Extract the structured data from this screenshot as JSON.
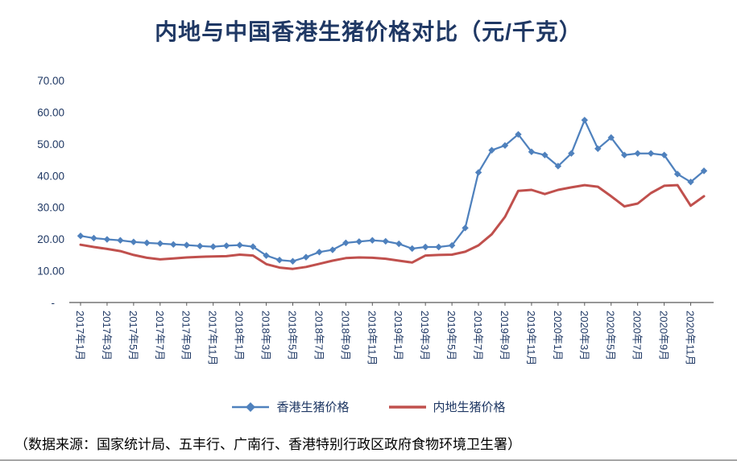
{
  "page": {
    "source_note": "（数据来源：国家统计局、五丰行、广南行、香港特别行政区政府食物环境卫生署）"
  },
  "chart_data": {
    "type": "line",
    "title": "内地与中国香港生猪价格对比（元/千克）",
    "xlabel": "",
    "ylabel": "",
    "ylim": [
      0,
      70
    ],
    "y_tick_values": [
      70,
      60,
      50,
      40,
      30,
      20,
      10,
      0
    ],
    "y_tick_labels": [
      "70.00",
      "60.00",
      "50.00",
      "40.00",
      "30.00",
      "20.00",
      "10.00",
      "-"
    ],
    "grid": false,
    "legend_position": "bottom",
    "tick_label_every": 2,
    "label_color": "#1F3864",
    "axis_color": "#595959",
    "categories": [
      "2017年1月",
      "2017年2月",
      "2017年3月",
      "2017年4月",
      "2017年5月",
      "2017年6月",
      "2017年7月",
      "2017年8月",
      "2017年9月",
      "2017年10月",
      "2017年11月",
      "2017年12月",
      "2018年1月",
      "2018年2月",
      "2018年3月",
      "2018年4月",
      "2018年5月",
      "2018年6月",
      "2018年7月",
      "2018年8月",
      "2018年9月",
      "2018年10月",
      "2018年11月",
      "2018年12月",
      "2019年1月",
      "2019年2月",
      "2019年3月",
      "2019年4月",
      "2019年5月",
      "2019年6月",
      "2019年7月",
      "2019年8月",
      "2019年9月",
      "2019年10月",
      "2019年11月",
      "2019年12月",
      "2020年1月",
      "2020年2月",
      "2020年3月",
      "2020年4月",
      "2020年5月",
      "2020年6月",
      "2020年7月",
      "2020年8月",
      "2020年9月",
      "2020年10月",
      "2020年11月",
      "2020年12月"
    ],
    "series": [
      {
        "name": "香港生猪价格",
        "color": "#4F81BD",
        "marker": "diamond",
        "line_width": 2.25,
        "values": [
          21.0,
          20.3,
          19.9,
          19.6,
          19.1,
          18.8,
          18.6,
          18.3,
          18.1,
          17.8,
          17.6,
          17.9,
          18.1,
          17.6,
          14.8,
          13.4,
          13.0,
          14.3,
          15.9,
          16.6,
          18.8,
          19.2,
          19.6,
          19.3,
          18.5,
          17.0,
          17.5,
          17.5,
          18.0,
          23.5,
          41.0,
          48.0,
          49.5,
          53.0,
          47.5,
          46.5,
          43.0,
          47.0,
          57.5,
          48.5,
          52.0,
          46.5,
          47.0,
          47.0,
          46.5,
          40.5,
          38.0,
          41.5
        ]
      },
      {
        "name": "内地生猪价格",
        "color": "#C0504D",
        "marker": "none",
        "line_width": 3,
        "values": [
          18.2,
          17.5,
          16.9,
          16.2,
          15.0,
          14.1,
          13.6,
          13.9,
          14.2,
          14.4,
          14.5,
          14.6,
          15.1,
          14.8,
          12.1,
          11.0,
          10.6,
          11.2,
          12.2,
          13.2,
          14.0,
          14.2,
          14.1,
          13.8,
          13.2,
          12.6,
          14.8,
          15.0,
          15.1,
          16.0,
          18.0,
          21.5,
          27.0,
          35.2,
          35.5,
          34.2,
          35.5,
          36.3,
          37.0,
          36.5,
          33.5,
          30.3,
          31.2,
          34.5,
          36.8,
          37.0,
          30.5,
          33.5
        ]
      }
    ]
  }
}
